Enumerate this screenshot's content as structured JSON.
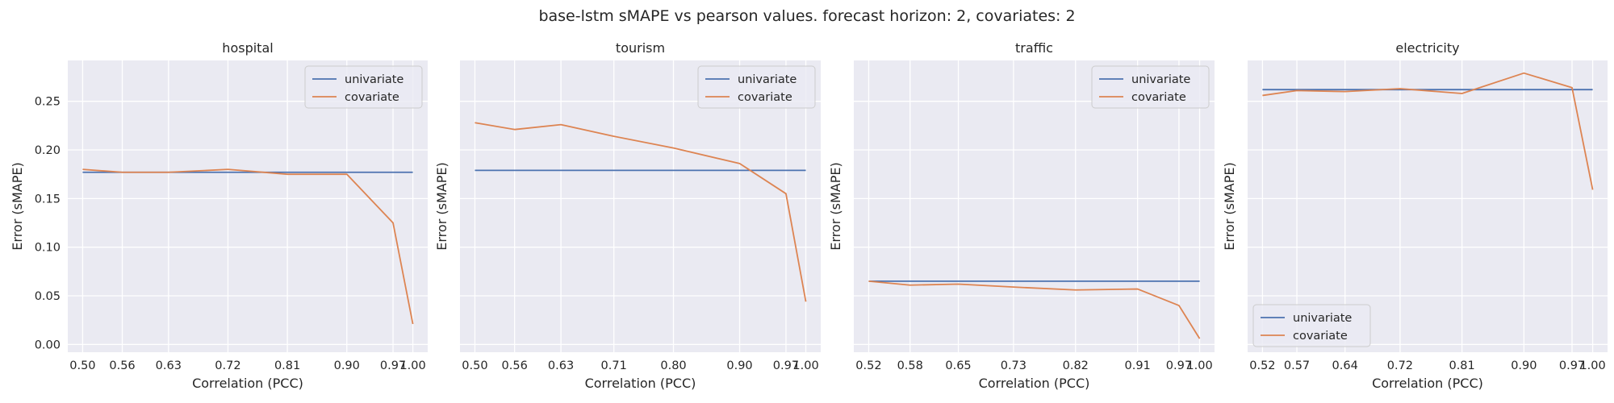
{
  "figure": {
    "suptitle": "base-lstm  sMAPE vs pearson values. forecast horizon: 2, covariates: 2"
  },
  "colors": {
    "univariate": "#4c72b0",
    "covariate": "#dd8452",
    "panel_bg": "#eaeaf2",
    "grid": "#ffffff"
  },
  "chart_data": [
    {
      "type": "line",
      "title": "hospital",
      "xlabel": "Correlation (PCC)",
      "ylabel": "Error (sMAPE)",
      "legend_loc": "upper right",
      "show_yticklabels": true,
      "x": [
        0.5,
        0.56,
        0.63,
        0.72,
        0.81,
        0.9,
        0.97,
        1.0
      ],
      "xtick_labels": [
        "0.50",
        "0.56",
        "0.63",
        "0.72",
        "0.81",
        "0.90",
        "0.97",
        "1.00"
      ],
      "yticks": [
        0.0,
        0.05,
        0.1,
        0.15,
        0.2,
        0.25
      ],
      "ytick_labels": [
        "0.00",
        "0.05",
        "0.10",
        "0.15",
        "0.20",
        "0.25"
      ],
      "series": [
        {
          "name": "univariate",
          "values": [
            0.177,
            0.177,
            0.177,
            0.177,
            0.177,
            0.177,
            0.177,
            0.177
          ]
        },
        {
          "name": "covariate",
          "values": [
            0.18,
            0.177,
            0.177,
            0.18,
            0.175,
            0.175,
            0.125,
            0.021
          ]
        }
      ]
    },
    {
      "type": "line",
      "title": "tourism",
      "xlabel": "Correlation (PCC)",
      "ylabel": "Error (sMAPE)",
      "legend_loc": "upper right",
      "show_yticklabels": false,
      "x": [
        0.5,
        0.56,
        0.63,
        0.71,
        0.8,
        0.9,
        0.97,
        1.0
      ],
      "xtick_labels": [
        "0.50",
        "0.56",
        "0.63",
        "0.71",
        "0.80",
        "0.90",
        "0.97",
        "1.00"
      ],
      "yticks": [
        0.0,
        0.05,
        0.1,
        0.15,
        0.2,
        0.25
      ],
      "ytick_labels": [
        "0.00",
        "0.05",
        "0.10",
        "0.15",
        "0.20",
        "0.25"
      ],
      "series": [
        {
          "name": "univariate",
          "values": [
            0.179,
            0.179,
            0.179,
            0.179,
            0.179,
            0.179,
            0.179,
            0.179
          ]
        },
        {
          "name": "covariate",
          "values": [
            0.228,
            0.221,
            0.226,
            0.214,
            0.202,
            0.186,
            0.155,
            0.044
          ]
        }
      ]
    },
    {
      "type": "line",
      "title": "traffic",
      "xlabel": "Correlation (PCC)",
      "ylabel": "Error (sMAPE)",
      "legend_loc": "upper right",
      "show_yticklabels": false,
      "x": [
        0.52,
        0.58,
        0.65,
        0.73,
        0.82,
        0.91,
        0.97,
        1.0
      ],
      "xtick_labels": [
        "0.52",
        "0.58",
        "0.65",
        "0.73",
        "0.82",
        "0.91",
        "0.97",
        "1.00"
      ],
      "yticks": [
        0.0,
        0.05,
        0.1,
        0.15,
        0.2,
        0.25
      ],
      "ytick_labels": [
        "0.00",
        "0.05",
        "0.10",
        "0.15",
        "0.20",
        "0.25"
      ],
      "series": [
        {
          "name": "univariate",
          "values": [
            0.065,
            0.065,
            0.065,
            0.065,
            0.065,
            0.065,
            0.065,
            0.065
          ]
        },
        {
          "name": "covariate",
          "values": [
            0.065,
            0.061,
            0.062,
            0.059,
            0.056,
            0.057,
            0.04,
            0.006
          ]
        }
      ]
    },
    {
      "type": "line",
      "title": "electricity",
      "xlabel": "Correlation (PCC)",
      "ylabel": "Error (sMAPE)",
      "legend_loc": "lower left",
      "show_yticklabels": false,
      "x": [
        0.52,
        0.57,
        0.64,
        0.72,
        0.81,
        0.9,
        0.97,
        1.0
      ],
      "xtick_labels": [
        "0.52",
        "0.57",
        "0.64",
        "0.72",
        "0.81",
        "0.90",
        "0.97",
        "1.00"
      ],
      "yticks": [
        0.0,
        0.05,
        0.1,
        0.15,
        0.2,
        0.25
      ],
      "ytick_labels": [
        "0.00",
        "0.05",
        "0.10",
        "0.15",
        "0.20",
        "0.25"
      ],
      "series": [
        {
          "name": "univariate",
          "values": [
            0.262,
            0.262,
            0.262,
            0.262,
            0.262,
            0.262,
            0.262,
            0.262
          ]
        },
        {
          "name": "covariate",
          "values": [
            0.256,
            0.261,
            0.26,
            0.263,
            0.258,
            0.279,
            0.264,
            0.159
          ]
        }
      ]
    }
  ]
}
